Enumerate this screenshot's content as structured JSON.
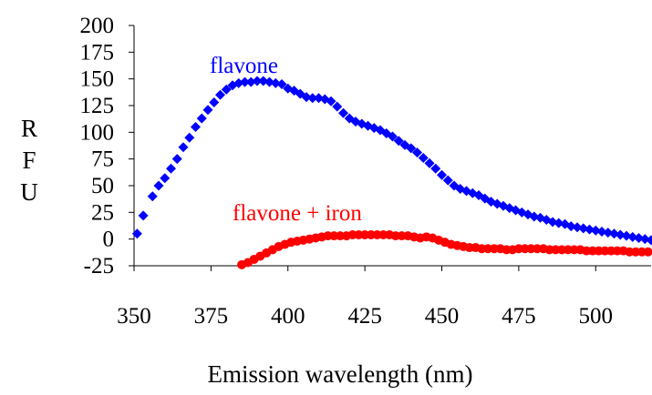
{
  "chart_data": {
    "type": "scatter",
    "title": "",
    "xlabel": "Emission wavelength (nm)",
    "ylabel": [
      "R",
      "F",
      "U"
    ],
    "xlim": [
      350,
      518
    ],
    "ylim": [
      -25,
      200
    ],
    "x_ticks": [
      350,
      375,
      400,
      425,
      450,
      475,
      500
    ],
    "y_ticks": [
      200,
      175,
      150,
      125,
      100,
      75,
      50,
      25,
      0,
      -25
    ],
    "grid": false,
    "series": [
      {
        "name": "flavone",
        "color": "#0000ff",
        "marker": "diamond",
        "points": [
          [
            351,
            5
          ],
          [
            353,
            22
          ],
          [
            356,
            40
          ],
          [
            358,
            50
          ],
          [
            360,
            57
          ],
          [
            362,
            66
          ],
          [
            364,
            75
          ],
          [
            366,
            86
          ],
          [
            368,
            95
          ],
          [
            370,
            105
          ],
          [
            372,
            113
          ],
          [
            374,
            121
          ],
          [
            376,
            128
          ],
          [
            378,
            135
          ],
          [
            380,
            140
          ],
          [
            382,
            144
          ],
          [
            384,
            146
          ],
          [
            386,
            147
          ],
          [
            388,
            147
          ],
          [
            390,
            148
          ],
          [
            392,
            148
          ],
          [
            394,
            147
          ],
          [
            396,
            146
          ],
          [
            398,
            145
          ],
          [
            400,
            141
          ],
          [
            402,
            139
          ],
          [
            404,
            136
          ],
          [
            406,
            133
          ],
          [
            408,
            132
          ],
          [
            410,
            132
          ],
          [
            412,
            131
          ],
          [
            414,
            129
          ],
          [
            416,
            124
          ],
          [
            418,
            118
          ],
          [
            420,
            113
          ],
          [
            422,
            110
          ],
          [
            424,
            108
          ],
          [
            426,
            106
          ],
          [
            428,
            104
          ],
          [
            430,
            102
          ],
          [
            432,
            99
          ],
          [
            434,
            96
          ],
          [
            436,
            92
          ],
          [
            438,
            88
          ],
          [
            440,
            85
          ],
          [
            442,
            81
          ],
          [
            444,
            76
          ],
          [
            446,
            71
          ],
          [
            448,
            66
          ],
          [
            450,
            60
          ],
          [
            452,
            55
          ],
          [
            454,
            50
          ],
          [
            456,
            47
          ],
          [
            458,
            45
          ],
          [
            460,
            43
          ],
          [
            462,
            41
          ],
          [
            464,
            38
          ],
          [
            466,
            35
          ],
          [
            468,
            33
          ],
          [
            470,
            31
          ],
          [
            472,
            29
          ],
          [
            474,
            27
          ],
          [
            476,
            25
          ],
          [
            478,
            23
          ],
          [
            480,
            21
          ],
          [
            482,
            20
          ],
          [
            484,
            18
          ],
          [
            486,
            16
          ],
          [
            488,
            15
          ],
          [
            490,
            14
          ],
          [
            492,
            12
          ],
          [
            494,
            11
          ],
          [
            496,
            10
          ],
          [
            498,
            9
          ],
          [
            500,
            8
          ],
          [
            502,
            7
          ],
          [
            504,
            6
          ],
          [
            506,
            5
          ],
          [
            508,
            4
          ],
          [
            510,
            3
          ],
          [
            512,
            2
          ],
          [
            514,
            1
          ],
          [
            516,
            0
          ],
          [
            518,
            -1
          ]
        ]
      },
      {
        "name": "flavone + iron",
        "color": "#ff0000",
        "marker": "circle",
        "points": [
          [
            385,
            -24
          ],
          [
            387,
            -22
          ],
          [
            389,
            -19
          ],
          [
            391,
            -16
          ],
          [
            393,
            -13
          ],
          [
            395,
            -10
          ],
          [
            397,
            -7
          ],
          [
            399,
            -5
          ],
          [
            401,
            -3
          ],
          [
            403,
            -2
          ],
          [
            405,
            -1
          ],
          [
            407,
            0
          ],
          [
            409,
            1
          ],
          [
            411,
            2
          ],
          [
            413,
            3
          ],
          [
            415,
            3
          ],
          [
            417,
            3
          ],
          [
            419,
            3
          ],
          [
            421,
            4
          ],
          [
            423,
            4
          ],
          [
            425,
            4
          ],
          [
            427,
            4
          ],
          [
            429,
            4
          ],
          [
            431,
            4
          ],
          [
            433,
            4
          ],
          [
            435,
            3
          ],
          [
            437,
            3
          ],
          [
            439,
            3
          ],
          [
            441,
            2
          ],
          [
            443,
            1
          ],
          [
            445,
            2
          ],
          [
            447,
            1
          ],
          [
            449,
            -1
          ],
          [
            451,
            -3
          ],
          [
            453,
            -5
          ],
          [
            455,
            -6
          ],
          [
            457,
            -7
          ],
          [
            459,
            -8
          ],
          [
            461,
            -8
          ],
          [
            463,
            -9
          ],
          [
            465,
            -9
          ],
          [
            467,
            -9
          ],
          [
            469,
            -9
          ],
          [
            471,
            -10
          ],
          [
            473,
            -10
          ],
          [
            475,
            -9
          ],
          [
            477,
            -9
          ],
          [
            479,
            -9
          ],
          [
            481,
            -9
          ],
          [
            483,
            -9
          ],
          [
            485,
            -10
          ],
          [
            487,
            -10
          ],
          [
            489,
            -10
          ],
          [
            491,
            -10
          ],
          [
            493,
            -10
          ],
          [
            495,
            -10
          ],
          [
            497,
            -11
          ],
          [
            499,
            -11
          ],
          [
            501,
            -11
          ],
          [
            503,
            -11
          ],
          [
            505,
            -11
          ],
          [
            507,
            -11
          ],
          [
            509,
            -11
          ],
          [
            511,
            -12
          ],
          [
            513,
            -12
          ],
          [
            515,
            -12
          ],
          [
            517,
            -12
          ]
        ]
      }
    ]
  }
}
